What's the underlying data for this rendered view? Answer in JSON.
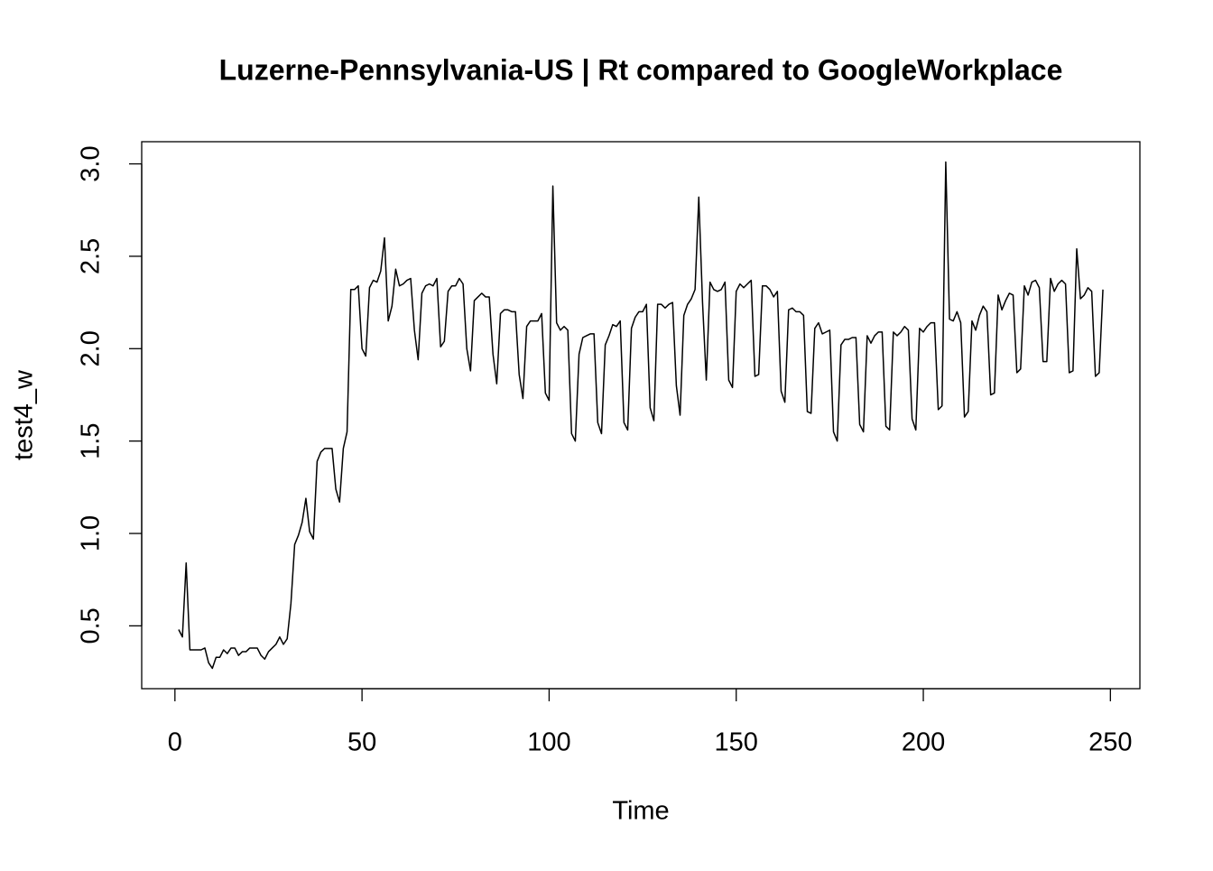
{
  "chart_data": {
    "type": "line",
    "title": "Luzerne-Pennsylvania-US | Rt compared to GoogleWorkplace",
    "xlabel": "Time",
    "ylabel": "test4_w",
    "color": "#000000",
    "xlim": [
      -8.88,
      257.88
    ],
    "ylim": [
      0.16,
      3.12
    ],
    "xticks": [
      0,
      50,
      100,
      150,
      200,
      250
    ],
    "yticks": [
      0.5,
      {
        "value": 1,
        "label": "1.0"
      },
      1.5,
      {
        "value": 2,
        "label": "2.0"
      },
      2.5,
      {
        "value": 3,
        "label": "3.0"
      }
    ],
    "x": [
      1,
      2,
      3,
      4,
      5,
      6,
      7,
      8,
      9,
      10,
      11,
      12,
      13,
      14,
      15,
      16,
      17,
      18,
      19,
      20,
      21,
      22,
      23,
      24,
      25,
      26,
      27,
      28,
      29,
      30,
      31,
      32,
      33,
      34,
      35,
      36,
      37,
      38,
      39,
      40,
      41,
      42,
      43,
      44,
      45,
      46,
      47,
      48,
      49,
      50,
      51,
      52,
      53,
      54,
      55,
      56,
      57,
      58,
      59,
      60,
      61,
      62,
      63,
      64,
      65,
      66,
      67,
      68,
      69,
      70,
      71,
      72,
      73,
      74,
      75,
      76,
      77,
      78,
      79,
      80,
      81,
      82,
      83,
      84,
      85,
      86,
      87,
      88,
      89,
      90,
      91,
      92,
      93,
      94,
      95,
      96,
      97,
      98,
      99,
      100,
      101,
      102,
      103,
      104,
      105,
      106,
      107,
      108,
      109,
      110,
      111,
      112,
      113,
      114,
      115,
      116,
      117,
      118,
      119,
      120,
      121,
      122,
      123,
      124,
      125,
      126,
      127,
      128,
      129,
      130,
      131,
      132,
      133,
      134,
      135,
      136,
      137,
      138,
      139,
      140,
      141,
      142,
      143,
      144,
      145,
      146,
      147,
      148,
      149,
      150,
      151,
      152,
      153,
      154,
      155,
      156,
      157,
      158,
      159,
      160,
      161,
      162,
      163,
      164,
      165,
      166,
      167,
      168,
      169,
      170,
      171,
      172,
      173,
      174,
      175,
      176,
      177,
      178,
      179,
      180,
      181,
      182,
      183,
      184,
      185,
      186,
      187,
      188,
      189,
      190,
      191,
      192,
      193,
      194,
      195,
      196,
      197,
      198,
      199,
      200,
      201,
      202,
      203,
      204,
      205,
      206,
      207,
      208,
      209,
      210,
      211,
      212,
      213,
      214,
      215,
      216,
      217,
      218,
      219,
      220,
      221,
      222,
      223,
      224,
      225,
      226,
      227,
      228,
      229,
      230,
      231,
      232,
      233,
      234,
      235,
      236,
      237,
      238,
      239,
      240,
      241,
      242,
      243,
      244,
      245,
      246,
      247,
      248
    ],
    "values": [
      0.48,
      0.44,
      0.84,
      0.37,
      0.37,
      0.37,
      0.37,
      0.38,
      0.3,
      0.27,
      0.33,
      0.33,
      0.37,
      0.35,
      0.38,
      0.38,
      0.34,
      0.36,
      0.36,
      0.38,
      0.38,
      0.38,
      0.34,
      0.32,
      0.36,
      0.38,
      0.4,
      0.44,
      0.4,
      0.43,
      0.62,
      0.94,
      0.99,
      1.06,
      1.19,
      1.01,
      0.97,
      1.39,
      1.44,
      1.46,
      1.46,
      1.46,
      1.24,
      1.17,
      1.46,
      1.55,
      2.32,
      2.32,
      2.34,
      2.0,
      1.96,
      2.33,
      2.37,
      2.36,
      2.42,
      2.6,
      2.15,
      2.23,
      2.43,
      2.34,
      2.35,
      2.37,
      2.38,
      2.1,
      1.94,
      2.3,
      2.34,
      2.35,
      2.34,
      2.38,
      2.01,
      2.04,
      2.31,
      2.34,
      2.34,
      2.38,
      2.35,
      2.0,
      1.88,
      2.26,
      2.28,
      2.3,
      2.28,
      2.28,
      1.97,
      1.81,
      2.19,
      2.21,
      2.21,
      2.2,
      2.2,
      1.86,
      1.73,
      2.12,
      2.15,
      2.15,
      2.15,
      2.19,
      1.76,
      1.72,
      2.88,
      2.14,
      2.1,
      2.12,
      2.1,
      1.54,
      1.5,
      1.97,
      2.06,
      2.07,
      2.08,
      2.08,
      1.6,
      1.54,
      2.02,
      2.07,
      2.13,
      2.12,
      2.15,
      1.6,
      1.56,
      2.11,
      2.17,
      2.2,
      2.2,
      2.24,
      1.68,
      1.61,
      2.24,
      2.24,
      2.22,
      2.24,
      2.25,
      1.8,
      1.64,
      2.18,
      2.24,
      2.27,
      2.32,
      2.82,
      2.25,
      1.83,
      2.36,
      2.32,
      2.31,
      2.32,
      2.36,
      1.83,
      1.79,
      2.31,
      2.35,
      2.33,
      2.35,
      2.37,
      1.85,
      1.86,
      2.34,
      2.34,
      2.32,
      2.28,
      2.31,
      1.77,
      1.71,
      2.21,
      2.22,
      2.2,
      2.2,
      2.18,
      1.66,
      1.65,
      2.11,
      2.14,
      2.08,
      2.09,
      2.1,
      1.55,
      1.5,
      2.02,
      2.05,
      2.05,
      2.06,
      2.06,
      1.59,
      1.55,
      2.07,
      2.03,
      2.07,
      2.09,
      2.09,
      1.58,
      1.56,
      2.09,
      2.07,
      2.09,
      2.12,
      2.1,
      1.62,
      1.56,
      2.11,
      2.09,
      2.12,
      2.14,
      2.14,
      1.67,
      1.69,
      3.01,
      2.16,
      2.15,
      2.2,
      2.14,
      1.63,
      1.66,
      2.15,
      2.1,
      2.18,
      2.23,
      2.2,
      1.75,
      1.76,
      2.29,
      2.21,
      2.26,
      2.3,
      2.29,
      1.87,
      1.89,
      2.34,
      2.29,
      2.36,
      2.37,
      2.33,
      1.93,
      1.93,
      2.38,
      2.31,
      2.35,
      2.37,
      2.35,
      1.87,
      1.88,
      2.54,
      2.27,
      2.29,
      2.33,
      2.31,
      1.85,
      1.87,
      2.32
    ]
  }
}
